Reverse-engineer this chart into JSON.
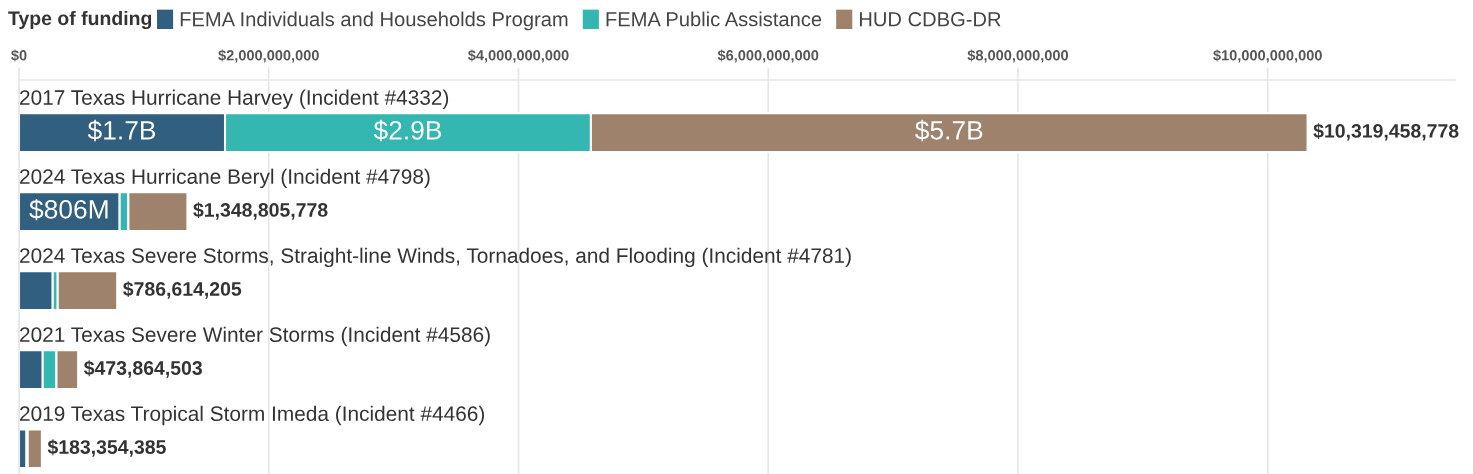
{
  "chart_data": {
    "type": "bar",
    "orientation": "horizontal",
    "stacked": true,
    "legend_title": "Type of funding",
    "legend": "top",
    "grid": "x",
    "categories": [
      "2017 Texas Hurricane Harvey (Incident #4332)",
      "2024 Texas Hurricane Beryl (Incident #4798)",
      "2024 Texas Severe Storms, Straight-line Winds, Tornadoes, and Flooding (Incident #4781)",
      "2021 Texas Severe Winter Storms (Incident #4586)",
      "2019 Texas Tropical Storm Imeda (Incident #4466)"
    ],
    "series": [
      {
        "name": "FEMA Individuals and Households Program",
        "color": "#315f80",
        "values": [
          1650000000,
          806000000,
          270000000,
          190000000,
          60000000
        ],
        "value_labels": [
          "$1.7B",
          "$806M",
          null,
          null,
          null
        ]
      },
      {
        "name": "FEMA Public Assistance",
        "color": "#33b7b0",
        "values": [
          2930000000,
          70000000,
          40000000,
          110000000,
          10000000
        ],
        "value_labels": [
          "$2.9B",
          null,
          null,
          null,
          null
        ]
      },
      {
        "name": "HUD CDBG-DR",
        "color": "#9e826c",
        "values": [
          5739458778,
          472805778,
          476614205,
          173864503,
          113354385
        ],
        "value_labels": [
          "$5.7B",
          null,
          null,
          null,
          null
        ]
      }
    ],
    "totals": [
      "$10,319,458,778",
      "$1,348,805,778",
      "$786,614,205",
      "$473,864,503",
      "$183,354,385"
    ],
    "xlim": [
      0,
      11500000000
    ],
    "xticks": [
      {
        "value": 0,
        "label": "$0"
      },
      {
        "value": 2000000000,
        "label": "$2,000,000,000"
      },
      {
        "value": 4000000000,
        "label": "$4,000,000,000"
      },
      {
        "value": 6000000000,
        "label": "$6,000,000,000"
      },
      {
        "value": 8000000000,
        "label": "$8,000,000,000"
      },
      {
        "value": 10000000000,
        "label": "$10,000,000,000"
      }
    ]
  }
}
